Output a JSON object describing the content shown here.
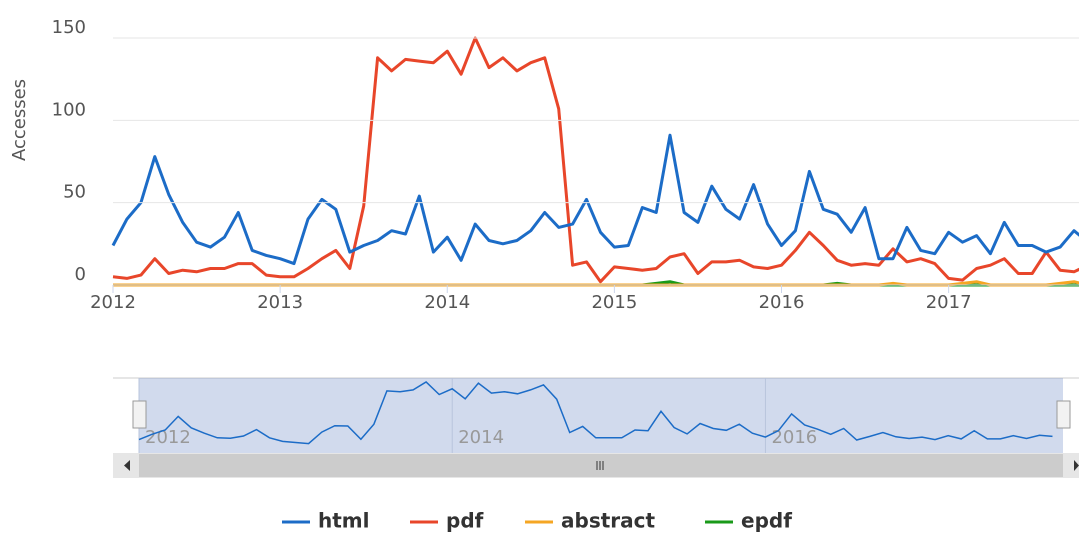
{
  "chart_data": {
    "type": "line",
    "y_label": "Accesses",
    "x": [
      2012.0,
      2012.083,
      2012.167,
      2012.25,
      2012.333,
      2012.417,
      2012.5,
      2012.583,
      2012.667,
      2012.75,
      2012.833,
      2012.917,
      2013.0,
      2013.083,
      2013.167,
      2013.25,
      2013.333,
      2013.417,
      2013.5,
      2013.583,
      2013.667,
      2013.75,
      2013.833,
      2013.917,
      2014.0,
      2014.083,
      2014.167,
      2014.25,
      2014.333,
      2014.417,
      2014.5,
      2014.583,
      2014.667,
      2014.75,
      2014.833,
      2014.917,
      2015.0,
      2015.083,
      2015.167,
      2015.25,
      2015.333,
      2015.417,
      2015.5,
      2015.583,
      2015.667,
      2015.75,
      2015.833,
      2015.917,
      2016.0,
      2016.083,
      2016.167,
      2016.25,
      2016.333,
      2016.417,
      2016.5,
      2016.583,
      2016.667,
      2016.75,
      2016.833,
      2016.917,
      2017.0,
      2017.083,
      2017.167,
      2017.25,
      2017.333,
      2017.417,
      2017.5,
      2017.583,
      2017.667,
      2017.75,
      2017.833
    ],
    "series": [
      {
        "name": "html",
        "color": "#1c6cc7",
        "values": [
          24,
          40,
          50,
          78,
          55,
          38,
          26,
          23,
          29,
          44,
          21,
          18,
          16,
          13,
          40,
          52,
          46,
          20,
          24,
          27,
          33,
          31,
          54,
          20,
          29,
          15,
          37,
          27,
          25,
          27,
          33,
          44,
          35,
          37,
          52,
          32,
          23,
          24,
          47,
          44,
          91,
          44,
          38,
          60,
          46,
          40,
          61,
          37,
          24,
          33,
          69,
          46,
          43,
          32,
          47,
          16,
          16,
          35,
          21,
          19,
          32,
          26,
          30,
          19,
          38,
          24,
          24,
          20,
          23,
          33,
          26
        ]
      },
      {
        "name": "pdf",
        "color": "#e8462a",
        "values": [
          5,
          4,
          6,
          16,
          7,
          9,
          8,
          10,
          10,
          13,
          13,
          6,
          5,
          5,
          10,
          16,
          21,
          10,
          48,
          138,
          130,
          137,
          136,
          135,
          142,
          128,
          150,
          132,
          138,
          130,
          135,
          138,
          107,
          12,
          14,
          2,
          11,
          10,
          9,
          10,
          17,
          19,
          7,
          14,
          14,
          15,
          11,
          10,
          12,
          21,
          32,
          24,
          15,
          12,
          13,
          12,
          22,
          14,
          16,
          13,
          4,
          3,
          10,
          12,
          16,
          7,
          7,
          20,
          9,
          8,
          12
        ]
      },
      {
        "name": "abstract",
        "color": "#f5a623",
        "values": [
          0,
          0,
          0,
          0,
          0,
          0,
          0,
          0,
          0,
          0,
          0,
          0,
          0,
          0,
          0,
          0,
          0,
          0,
          0,
          0,
          0,
          0,
          0,
          0,
          0,
          0,
          0,
          0,
          0,
          0,
          0,
          0,
          0,
          0,
          0,
          0,
          0,
          0,
          0,
          0,
          0,
          0,
          0,
          0,
          0,
          0,
          0,
          0,
          0,
          0,
          0,
          0,
          0,
          0,
          0,
          0,
          1,
          0,
          0,
          0,
          0,
          1,
          2,
          0,
          0,
          0,
          0,
          0,
          1,
          2,
          0
        ]
      },
      {
        "name": "epdf",
        "color": "#1a9a1a",
        "values": [
          0,
          0,
          0,
          0,
          0,
          0,
          0,
          0,
          0,
          0,
          0,
          0,
          0,
          0,
          0,
          0,
          0,
          0,
          0,
          0,
          0,
          0,
          0,
          0,
          0,
          0,
          0,
          0,
          0,
          0,
          0,
          0,
          0,
          0,
          0,
          0,
          0,
          0,
          0,
          1,
          2,
          0,
          0,
          0,
          0,
          0,
          0,
          0,
          0,
          0,
          0,
          0,
          1,
          0,
          0,
          0,
          0,
          0,
          0,
          0,
          0,
          0,
          0,
          0,
          0,
          0,
          0,
          0,
          0,
          0,
          0
        ]
      }
    ],
    "xlim": [
      2012,
      2017.78
    ],
    "xticks": [
      2012,
      2013,
      2014,
      2015,
      2016,
      2017
    ],
    "ylim": [
      0,
      150
    ],
    "yticks": [
      0,
      50,
      100,
      150
    ],
    "grid": true,
    "navigator_xlim": [
      2012,
      2017.9
    ],
    "navigator_xticks": [
      2012,
      2014,
      2016
    ],
    "legend": "bottom"
  }
}
